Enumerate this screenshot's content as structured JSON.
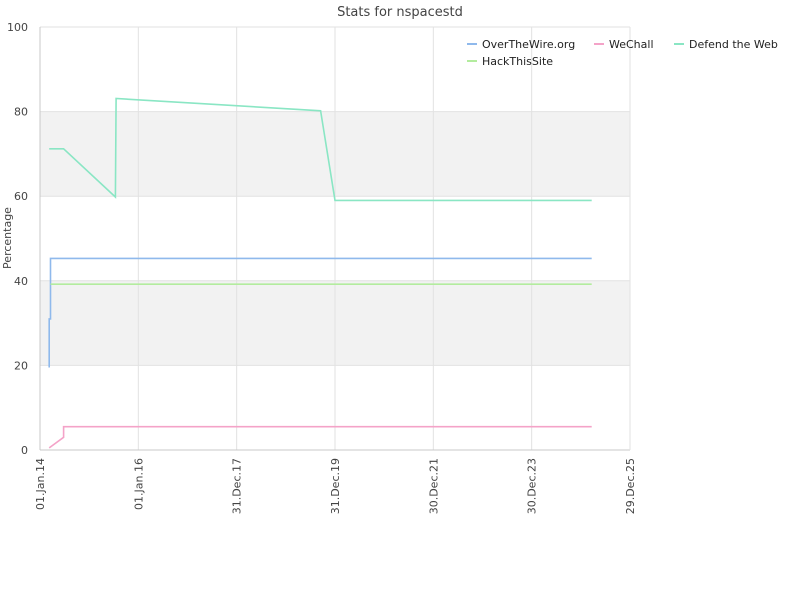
{
  "chart_data": {
    "type": "line",
    "title": "Stats for nspacestd",
    "xlabel": "",
    "ylabel": "Percentage",
    "ylim": [
      0,
      100
    ],
    "y_ticks": [
      0,
      20,
      40,
      60,
      80,
      100
    ],
    "xlim": [
      "2014-01-01",
      "2025-12-29"
    ],
    "x_ticks": [
      {
        "date": "2014-01-01",
        "label": "01.Jan.14"
      },
      {
        "date": "2016-01-01",
        "label": "01.Jan.16"
      },
      {
        "date": "2017-12-31",
        "label": "31.Dec.17"
      },
      {
        "date": "2019-12-31",
        "label": "31.Dec.19"
      },
      {
        "date": "2021-12-30",
        "label": "30.Dec.21"
      },
      {
        "date": "2023-12-30",
        "label": "30.Dec.23"
      },
      {
        "date": "2025-12-29",
        "label": "29.Dec.25"
      }
    ],
    "grid": "alternating bands",
    "legend_position": "top-right",
    "series": [
      {
        "name": "OverTheWire.org",
        "color": "#8fb9ec",
        "points": [
          {
            "x": "2014-03-10",
            "y": 19.5
          },
          {
            "x": "2014-03-10",
            "y": 31
          },
          {
            "x": "2014-03-20",
            "y": 31
          },
          {
            "x": "2014-03-20",
            "y": 45.3
          },
          {
            "x": "2025-03-20",
            "y": 45.3
          }
        ]
      },
      {
        "name": "WeChall",
        "color": "#f4a3c8",
        "points": [
          {
            "x": "2014-03-10",
            "y": 0.5
          },
          {
            "x": "2014-06-25",
            "y": 3
          },
          {
            "x": "2014-06-25",
            "y": 5.5
          },
          {
            "x": "2025-03-20",
            "y": 5.5
          }
        ]
      },
      {
        "name": "Defend the Web",
        "color": "#8ae6c4",
        "points": [
          {
            "x": "2014-03-10",
            "y": 71.2
          },
          {
            "x": "2014-06-25",
            "y": 71.2
          },
          {
            "x": "2015-07-15",
            "y": 59.8
          },
          {
            "x": "2015-07-20",
            "y": 83.1
          },
          {
            "x": "2019-09-15",
            "y": 80.2
          },
          {
            "x": "2019-12-31",
            "y": 59
          },
          {
            "x": "2025-03-20",
            "y": 59
          }
        ]
      },
      {
        "name": "HackThisSite",
        "color": "#b3ec9e",
        "points": [
          {
            "x": "2014-03-20",
            "y": 39.2
          },
          {
            "x": "2025-03-20",
            "y": 39.2
          }
        ]
      }
    ]
  }
}
